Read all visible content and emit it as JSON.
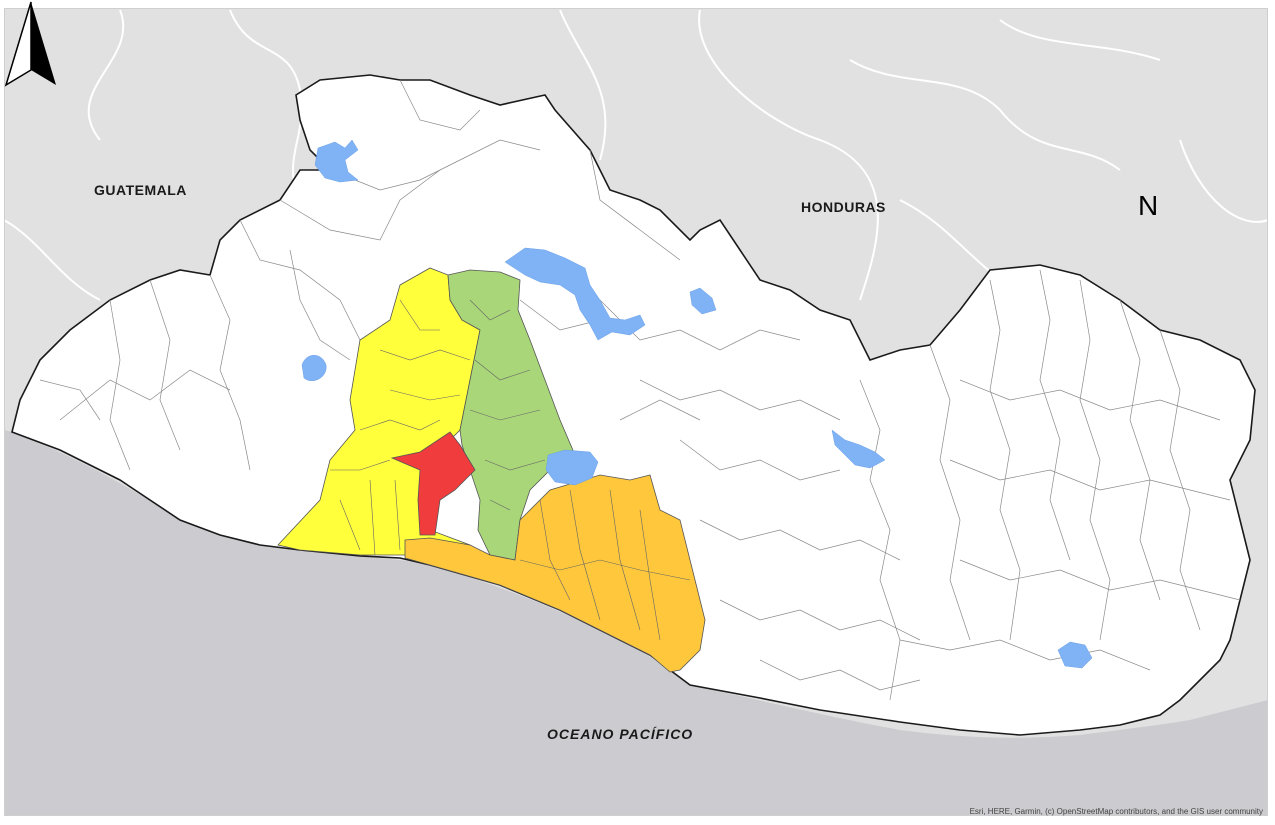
{
  "labels": {
    "guatemala": "GUATEMALA",
    "honduras": "HONDURAS",
    "ocean": "OCEANO PACÍFICO",
    "north": "N"
  },
  "attribution": "Esri, HERE, Garmin, (c) OpenStreetMap contributors, and the GIS user community",
  "colors": {
    "land_background": "#e1e1e1",
    "ocean": "#cbcbd0",
    "country_fill": "#ffffff",
    "lakes": "#80b3f5",
    "region_yellow": "#ffff3c",
    "region_green": "#a9d679",
    "region_orange": "#ffc83c",
    "region_red": "#f03c3c"
  }
}
